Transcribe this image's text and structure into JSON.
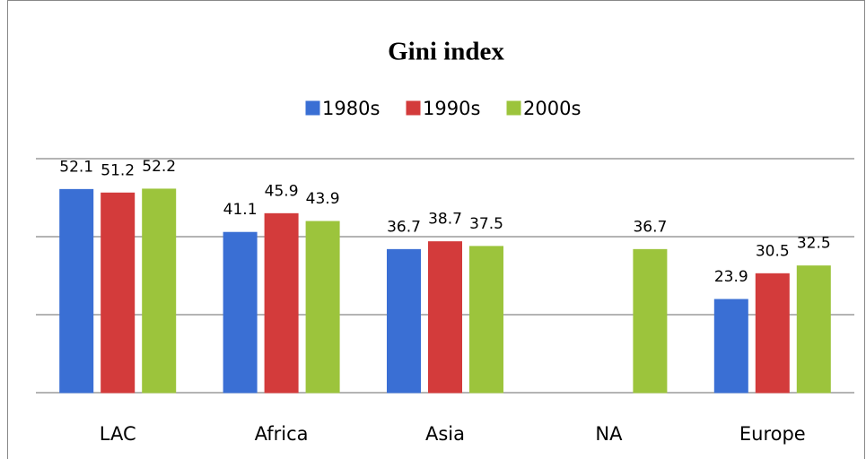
{
  "chart_data": {
    "type": "bar",
    "title": "Gini index",
    "categories": [
      "LAC",
      "Africa",
      "Asia",
      "NA",
      "Europe"
    ],
    "series": [
      {
        "name": "1980s",
        "color": "#3a6fd4",
        "values": [
          52.1,
          41.1,
          36.7,
          null,
          23.9
        ]
      },
      {
        "name": "1990s",
        "color": "#d33b3b",
        "values": [
          51.2,
          45.9,
          38.7,
          null,
          30.5
        ]
      },
      {
        "name": "2000s",
        "color": "#9cc43c",
        "values": [
          52.2,
          43.9,
          37.5,
          36.7,
          32.5
        ]
      }
    ],
    "ylim": [
      0,
      60
    ],
    "yticks": [
      0,
      20,
      40,
      60
    ],
    "grid": true
  }
}
